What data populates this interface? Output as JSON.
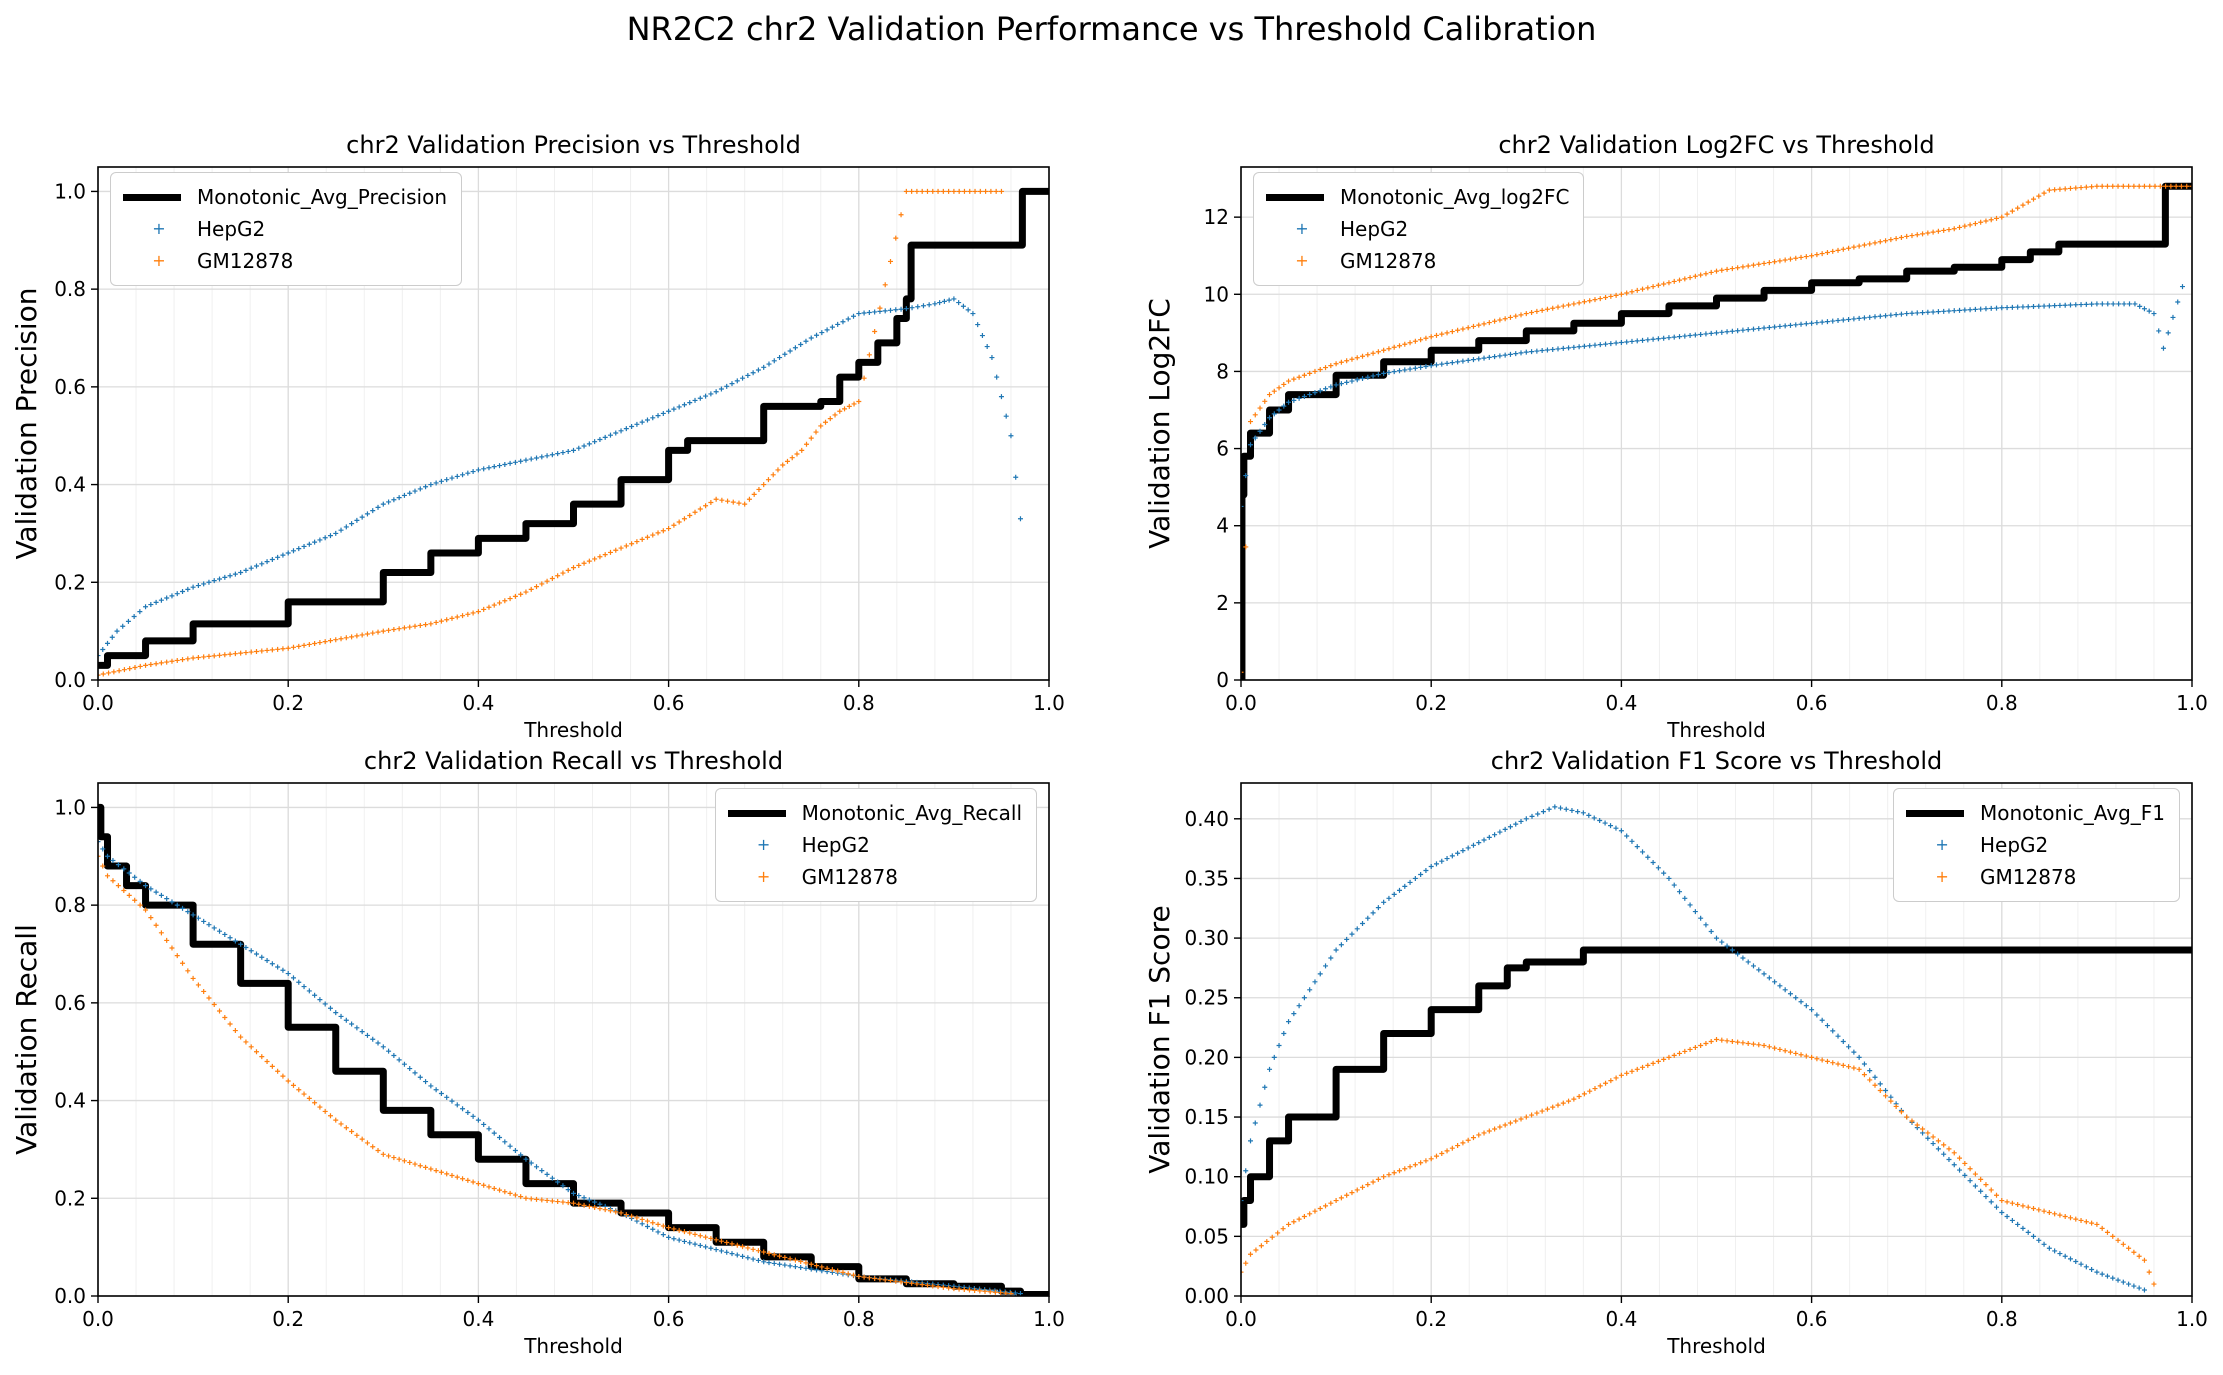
{
  "figure": {
    "suptitle": "NR2C2 chr2 Validation Performance vs Threshold Calibration",
    "colors": {
      "monotonic": "#000000",
      "hepg2": "#1f77b4",
      "gm12878": "#ff7f0e"
    }
  },
  "chart_data": [
    {
      "type": "line",
      "id": "precision",
      "title": "chr2 Validation Precision vs Threshold",
      "xlabel": "Threshold",
      "ylabel": "Validation Precision",
      "xlim": [
        0,
        1.0
      ],
      "ylim": [
        0,
        1.05
      ],
      "xticks": [
        "0.0",
        "0.2",
        "0.4",
        "0.6",
        "0.8",
        "1.0"
      ],
      "yticks": [
        "0.0",
        "0.2",
        "0.4",
        "0.6",
        "0.8",
        "1.0"
      ],
      "grid": true,
      "legend": "upper left",
      "series": [
        {
          "name": "Monotonic_Avg_Precision",
          "style": "line",
          "x": [
            0,
            0.01,
            0.05,
            0.1,
            0.2,
            0.3,
            0.35,
            0.4,
            0.45,
            0.5,
            0.55,
            0.6,
            0.62,
            0.65,
            0.68,
            0.7,
            0.75,
            0.76,
            0.78,
            0.8,
            0.82,
            0.84,
            0.85,
            0.855,
            0.9,
            0.97,
            0.972,
            1.0
          ],
          "y": [
            0.03,
            0.05,
            0.08,
            0.115,
            0.16,
            0.22,
            0.26,
            0.29,
            0.32,
            0.36,
            0.41,
            0.47,
            0.49,
            0.49,
            0.49,
            0.56,
            0.56,
            0.57,
            0.62,
            0.65,
            0.69,
            0.74,
            0.78,
            0.89,
            0.89,
            0.89,
            1.0,
            1.0
          ]
        },
        {
          "name": "HepG2",
          "style": "scatter",
          "x": [
            0,
            0.02,
            0.05,
            0.1,
            0.15,
            0.2,
            0.25,
            0.3,
            0.35,
            0.4,
            0.45,
            0.5,
            0.55,
            0.6,
            0.65,
            0.7,
            0.75,
            0.8,
            0.85,
            0.88,
            0.9,
            0.92,
            0.94,
            0.96,
            0.97
          ],
          "y": [
            0.05,
            0.1,
            0.15,
            0.19,
            0.22,
            0.26,
            0.3,
            0.36,
            0.4,
            0.43,
            0.45,
            0.47,
            0.51,
            0.55,
            0.59,
            0.64,
            0.7,
            0.75,
            0.76,
            0.77,
            0.78,
            0.75,
            0.66,
            0.5,
            0.33
          ]
        },
        {
          "name": "GM12878",
          "style": "scatter",
          "x": [
            0,
            0.05,
            0.1,
            0.2,
            0.3,
            0.35,
            0.4,
            0.45,
            0.5,
            0.55,
            0.6,
            0.65,
            0.68,
            0.7,
            0.72,
            0.74,
            0.76,
            0.78,
            0.8,
            0.85,
            0.9,
            0.95
          ],
          "y": [
            0.01,
            0.03,
            0.045,
            0.065,
            0.1,
            0.115,
            0.14,
            0.18,
            0.23,
            0.27,
            0.31,
            0.37,
            0.36,
            0.4,
            0.44,
            0.47,
            0.52,
            0.55,
            0.57,
            1.0,
            1.0,
            1.0
          ]
        }
      ]
    },
    {
      "type": "line",
      "id": "log2fc",
      "title": "chr2 Validation Log2FC vs Threshold",
      "xlabel": "Threshold",
      "ylabel": "Validation Log2FC",
      "xlim": [
        0,
        1.0
      ],
      "ylim": [
        0,
        13.3
      ],
      "xticks": [
        "0.0",
        "0.2",
        "0.4",
        "0.6",
        "0.8",
        "1.0"
      ],
      "yticks": [
        "0",
        "2",
        "4",
        "6",
        "8",
        "10",
        "12"
      ],
      "grid": true,
      "legend": "upper left",
      "series": [
        {
          "name": "Monotonic_Avg_log2FC",
          "style": "line",
          "x": [
            0,
            0.001,
            0.003,
            0.01,
            0.03,
            0.05,
            0.1,
            0.15,
            0.2,
            0.25,
            0.3,
            0.35,
            0.4,
            0.45,
            0.5,
            0.55,
            0.6,
            0.65,
            0.7,
            0.75,
            0.8,
            0.83,
            0.86,
            0.9,
            0.97,
            0.972,
            1.0
          ],
          "y": [
            0,
            4.8,
            5.8,
            6.4,
            7.0,
            7.4,
            7.9,
            8.25,
            8.55,
            8.8,
            9.05,
            9.25,
            9.5,
            9.7,
            9.9,
            10.1,
            10.3,
            10.4,
            10.6,
            10.7,
            10.9,
            11.1,
            11.3,
            11.3,
            11.3,
            12.8,
            12.8
          ]
        },
        {
          "name": "HepG2",
          "style": "scatter",
          "x": [
            0,
            0.01,
            0.03,
            0.05,
            0.1,
            0.15,
            0.2,
            0.3,
            0.4,
            0.5,
            0.6,
            0.7,
            0.8,
            0.85,
            0.9,
            0.94,
            0.96,
            0.97,
            0.99
          ],
          "y": [
            4.5,
            6.1,
            6.8,
            7.2,
            7.65,
            7.95,
            8.15,
            8.5,
            8.75,
            9.0,
            9.25,
            9.5,
            9.65,
            9.7,
            9.75,
            9.75,
            9.5,
            8.6,
            10.2
          ]
        },
        {
          "name": "GM12878",
          "style": "scatter",
          "x": [
            0,
            0.01,
            0.03,
            0.05,
            0.1,
            0.15,
            0.2,
            0.3,
            0.4,
            0.5,
            0.6,
            0.65,
            0.7,
            0.75,
            0.8,
            0.85,
            0.9,
            0.95,
            1.0
          ],
          "y": [
            0.2,
            6.7,
            7.4,
            7.75,
            8.2,
            8.55,
            8.9,
            9.5,
            10.0,
            10.6,
            11.0,
            11.25,
            11.5,
            11.7,
            12.0,
            12.7,
            12.8,
            12.8,
            12.8
          ]
        }
      ]
    },
    {
      "type": "line",
      "id": "recall",
      "title": "chr2 Validation Recall vs Threshold",
      "xlabel": "Threshold",
      "ylabel": "Validation Recall",
      "xlim": [
        0,
        1.0
      ],
      "ylim": [
        0,
        1.05
      ],
      "xticks": [
        "0.0",
        "0.2",
        "0.4",
        "0.6",
        "0.8",
        "1.0"
      ],
      "yticks": [
        "0.0",
        "0.2",
        "0.4",
        "0.6",
        "0.8",
        "1.0"
      ],
      "grid": true,
      "legend": "upper right",
      "series": [
        {
          "name": "Monotonic_Avg_Recall",
          "style": "line",
          "x": [
            0,
            0.003,
            0.01,
            0.03,
            0.05,
            0.1,
            0.15,
            0.2,
            0.25,
            0.3,
            0.35,
            0.4,
            0.45,
            0.5,
            0.55,
            0.6,
            0.65,
            0.7,
            0.75,
            0.8,
            0.85,
            0.9,
            0.95,
            0.97,
            1.0
          ],
          "y": [
            1.0,
            0.94,
            0.88,
            0.84,
            0.8,
            0.72,
            0.64,
            0.55,
            0.46,
            0.38,
            0.33,
            0.28,
            0.23,
            0.19,
            0.17,
            0.14,
            0.11,
            0.08,
            0.06,
            0.035,
            0.025,
            0.02,
            0.01,
            0.003,
            0.0
          ]
        },
        {
          "name": "HepG2",
          "style": "scatter",
          "x": [
            0,
            0.01,
            0.05,
            0.1,
            0.15,
            0.2,
            0.25,
            0.3,
            0.35,
            0.4,
            0.45,
            0.5,
            0.55,
            0.6,
            0.7,
            0.8,
            0.9,
            0.97
          ],
          "y": [
            0.93,
            0.9,
            0.84,
            0.78,
            0.72,
            0.66,
            0.58,
            0.51,
            0.43,
            0.36,
            0.28,
            0.21,
            0.17,
            0.12,
            0.07,
            0.04,
            0.02,
            0.005
          ]
        },
        {
          "name": "GM12878",
          "style": "scatter",
          "x": [
            0,
            0.01,
            0.05,
            0.1,
            0.15,
            0.2,
            0.25,
            0.3,
            0.35,
            0.4,
            0.45,
            0.5,
            0.55,
            0.6,
            0.7,
            0.8,
            0.9,
            0.96
          ],
          "y": [
            0.9,
            0.86,
            0.79,
            0.65,
            0.53,
            0.44,
            0.36,
            0.29,
            0.26,
            0.23,
            0.2,
            0.19,
            0.17,
            0.14,
            0.09,
            0.04,
            0.015,
            0.005
          ]
        }
      ]
    },
    {
      "type": "line",
      "id": "f1",
      "title": "chr2 Validation F1 Score vs Threshold",
      "xlabel": "Threshold",
      "ylabel": "Validation F1 Score",
      "xlim": [
        0,
        1.0
      ],
      "ylim": [
        0,
        0.43
      ],
      "xticks": [
        "0.0",
        "0.2",
        "0.4",
        "0.6",
        "0.8",
        "1.0"
      ],
      "yticks": [
        "0.00",
        "0.05",
        "0.10",
        "0.15",
        "0.20",
        "0.25",
        "0.30",
        "0.35",
        "0.40"
      ],
      "grid": true,
      "legend": "upper right",
      "series": [
        {
          "name": "Monotonic_Avg_F1",
          "style": "line",
          "x": [
            0,
            0.003,
            0.01,
            0.03,
            0.05,
            0.1,
            0.15,
            0.2,
            0.25,
            0.28,
            0.3,
            0.33,
            0.36,
            0.4,
            0.6,
            0.8,
            1.0
          ],
          "y": [
            0.06,
            0.08,
            0.1,
            0.13,
            0.15,
            0.19,
            0.22,
            0.24,
            0.26,
            0.275,
            0.28,
            0.28,
            0.29,
            0.29,
            0.29,
            0.29,
            0.29
          ]
        },
        {
          "name": "HepG2",
          "style": "scatter",
          "x": [
            0,
            0.01,
            0.03,
            0.05,
            0.1,
            0.15,
            0.2,
            0.25,
            0.3,
            0.33,
            0.36,
            0.4,
            0.45,
            0.5,
            0.55,
            0.6,
            0.65,
            0.7,
            0.75,
            0.8,
            0.85,
            0.9,
            0.95
          ],
          "y": [
            0.08,
            0.13,
            0.19,
            0.23,
            0.29,
            0.33,
            0.36,
            0.38,
            0.4,
            0.41,
            0.405,
            0.39,
            0.35,
            0.3,
            0.27,
            0.24,
            0.2,
            0.15,
            0.11,
            0.07,
            0.04,
            0.02,
            0.005
          ]
        },
        {
          "name": "GM12878",
          "style": "scatter",
          "x": [
            0,
            0.01,
            0.05,
            0.1,
            0.15,
            0.2,
            0.25,
            0.3,
            0.35,
            0.4,
            0.45,
            0.5,
            0.55,
            0.6,
            0.65,
            0.7,
            0.75,
            0.8,
            0.85,
            0.9,
            0.95,
            0.96
          ],
          "y": [
            0.02,
            0.035,
            0.06,
            0.08,
            0.1,
            0.115,
            0.135,
            0.15,
            0.165,
            0.185,
            0.2,
            0.215,
            0.21,
            0.2,
            0.19,
            0.15,
            0.12,
            0.08,
            0.07,
            0.06,
            0.03,
            0.01
          ]
        }
      ]
    }
  ]
}
